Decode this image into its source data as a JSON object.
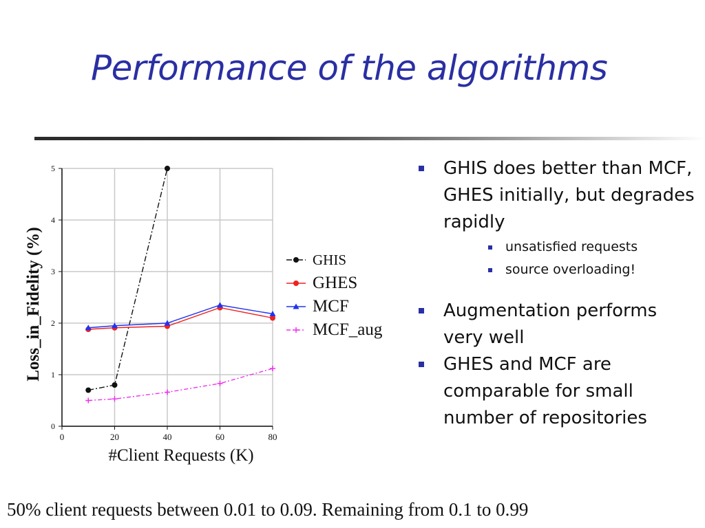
{
  "slide": {
    "title": "Performance of the algorithms",
    "footer": "50% client requests between 0.01 to 0.09. Remaining from 0.1 to 0.99"
  },
  "bullets": {
    "b1": "GHIS does better than MCF, GHES initially, but degrades rapidly",
    "b1_sub1": "unsatisfied requests",
    "b1_sub2": "source overloading!",
    "b2": "Augmentation performs very well",
    "b3": "GHES and MCF are comparable for small number of repositories"
  },
  "colors": {
    "title": "#2a2fa3",
    "bullet": "#2a2fa3"
  },
  "chart_data": {
    "type": "line",
    "xlabel": "#Client Requests (K)",
    "ylabel": "Loss_in_Fidelity (%)",
    "xlim": [
      0,
      80
    ],
    "ylim": [
      0,
      5
    ],
    "xticks": [
      0,
      20,
      40,
      60,
      80
    ],
    "yticks": [
      0,
      1,
      2,
      3,
      4,
      5
    ],
    "grid": true,
    "legend_position": "right",
    "series": [
      {
        "name": "GHIS",
        "color": "#111111",
        "marker": "circle",
        "dash": "8 3 2 3",
        "x": [
          10,
          20,
          40
        ],
        "y": [
          0.7,
          0.8,
          5.0
        ]
      },
      {
        "name": "GHES",
        "color": "#ee2222",
        "marker": "circle",
        "dash": "",
        "x": [
          10,
          20,
          40,
          60,
          80
        ],
        "y": [
          1.88,
          1.91,
          1.94,
          2.3,
          2.1
        ]
      },
      {
        "name": "MCF",
        "color": "#2233ee",
        "marker": "triangle",
        "dash": "",
        "x": [
          10,
          20,
          40,
          60,
          80
        ],
        "y": [
          1.91,
          1.95,
          2.0,
          2.35,
          2.18
        ]
      },
      {
        "name": "MCF_aug",
        "color": "#ee33ee",
        "marker": "plus",
        "dash": "6 3 2 3",
        "x": [
          10,
          20,
          40,
          60,
          80
        ],
        "y": [
          0.5,
          0.53,
          0.66,
          0.83,
          1.12
        ]
      }
    ]
  }
}
